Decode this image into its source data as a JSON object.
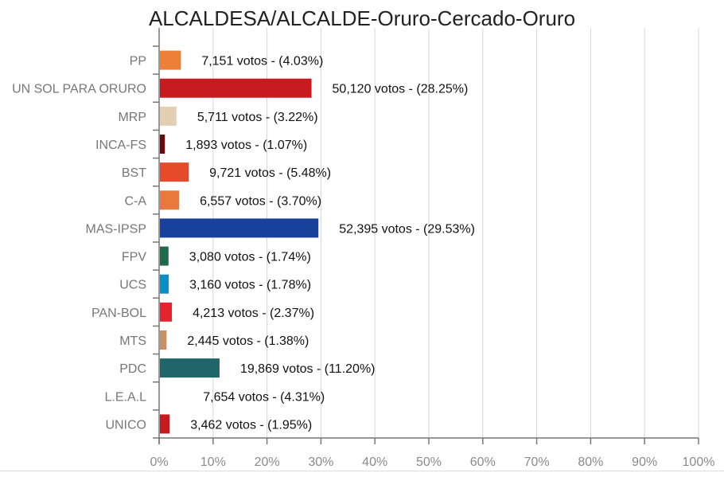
{
  "chart_data": {
    "type": "bar",
    "orientation": "horizontal",
    "title": "ALCALDESA/ALCALDE-Oruro-Cercado-Oruro",
    "xlabel": "",
    "ylabel": "",
    "xlim": [
      0,
      100
    ],
    "x_ticks": [
      "0%",
      "10%",
      "20%",
      "30%",
      "40%",
      "50%",
      "60%",
      "70%",
      "80%",
      "90%",
      "100%"
    ],
    "grid": "vertical",
    "legend": "none",
    "categories": [
      "PP",
      "UN SOL PARA ORURO",
      "MRP",
      "INCA-FS",
      "BST",
      "C-A",
      "MAS-IPSP",
      "FPV",
      "UCS",
      "PAN-BOL",
      "MTS",
      "PDC",
      "L.E.A.L",
      "UNICO"
    ],
    "votes": [
      "7,151",
      "50,120",
      "5,711",
      "1,893",
      "9,721",
      "6,557",
      "52,395",
      "3,080",
      "3,160",
      "4,213",
      "2,445",
      "19,869",
      "7,654",
      "3,462"
    ],
    "values": [
      4.03,
      28.25,
      3.22,
      1.07,
      5.48,
      3.7,
      29.53,
      1.74,
      1.78,
      2.37,
      1.38,
      11.2,
      4.31,
      1.95
    ],
    "data_labels": [
      "7,151 votos - (4.03%)",
      "50,120 votos - (28.25%)",
      "5,711 votos - (3.22%)",
      "1,893 votos - (1.07%)",
      "9,721 votos - (5.48%)",
      "6,557 votos - (3.70%)",
      "52,395 votos - (29.53%)",
      "3,080 votos - (1.74%)",
      "3,160 votos - (1.78%)",
      "4,213 votos - (2.37%)",
      "2,445 votos - (1.38%)",
      "19,869 votos - (11.20%)",
      "7,654 votos - (4.31%)",
      "3,462 votos - (1.95%)"
    ],
    "colors": [
      "#ee7f38",
      "#c81b1f",
      "#e3cfb1",
      "#6b0a0a",
      "#e54a2a",
      "#ea773e",
      "#17419b",
      "#1f6a4a",
      "#0b8fc9",
      "#e5222f",
      "#c98f64",
      "#1f6569",
      "#ffffff",
      "#c81b1f"
    ]
  }
}
